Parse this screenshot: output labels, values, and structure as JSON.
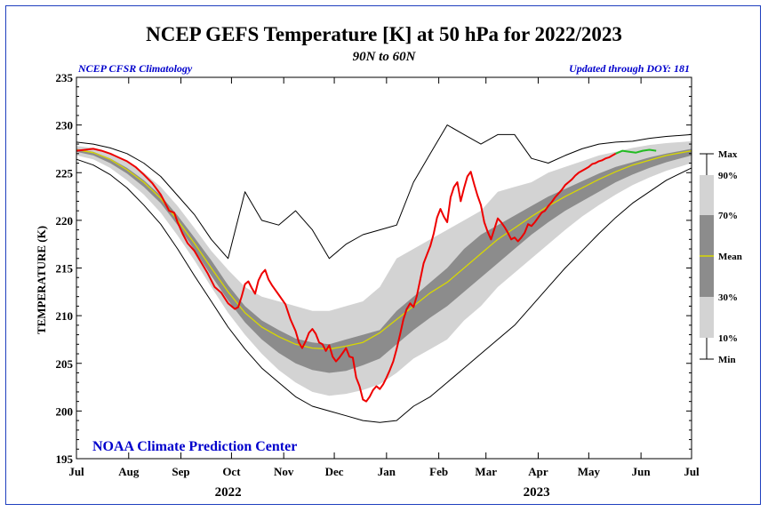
{
  "chart_data": {
    "type": "area",
    "title": "NCEP GEFS Temperature [K] at 50 hPa for 2022/2023",
    "subtitle": "90N to 60N",
    "left_note": "NCEP CFSR Climatology",
    "right_note": "Updated through DOY: 181",
    "ylabel": "TEMPERATURE (K)",
    "credit": "NOAA Climate Prediction Center",
    "ylim": [
      195,
      235
    ],
    "yticks": [
      195,
      200,
      205,
      210,
      215,
      220,
      225,
      230,
      235
    ],
    "xlim": [
      0,
      365
    ],
    "month_ticks": [
      {
        "label": "Jul",
        "day": 0
      },
      {
        "label": "Aug",
        "day": 31
      },
      {
        "label": "Sep",
        "day": 62
      },
      {
        "label": "Oct",
        "day": 92
      },
      {
        "label": "Nov",
        "day": 123
      },
      {
        "label": "Dec",
        "day": 153
      },
      {
        "label": "Jan",
        "day": 184
      },
      {
        "label": "Feb",
        "day": 215
      },
      {
        "label": "Mar",
        "day": 243
      },
      {
        "label": "Apr",
        "day": 274
      },
      {
        "label": "May",
        "day": 304
      },
      {
        "label": "Jun",
        "day": 335
      },
      {
        "label": "Jul",
        "day": 365
      }
    ],
    "year_labels": [
      {
        "label": "2022",
        "day": 90
      },
      {
        "label": "2023",
        "day": 273
      }
    ],
    "legend": {
      "items": [
        {
          "label": "Max",
          "value": "max"
        },
        {
          "label": "90%",
          "value": "p90"
        },
        {
          "label": "70%",
          "value": "p70"
        },
        {
          "label": "Mean",
          "value": "mean"
        },
        {
          "label": "30%",
          "value": "p30"
        },
        {
          "label": "10%",
          "value": "p10"
        },
        {
          "label": "Min",
          "value": "min"
        }
      ]
    },
    "colors": {
      "outer_band": "#d3d3d3",
      "inner_band": "#8c8c8c",
      "mean": "#d8d800",
      "extremes": "#000000",
      "observed": "#ee0000",
      "forecast": "#22bb22",
      "axes": "#000000",
      "text_blue": "#0000cc"
    },
    "series": {
      "days": [
        0,
        10,
        20,
        30,
        40,
        50,
        60,
        70,
        80,
        90,
        100,
        110,
        120,
        130,
        140,
        150,
        160,
        170,
        180,
        190,
        200,
        210,
        220,
        230,
        240,
        250,
        260,
        270,
        280,
        290,
        300,
        310,
        320,
        330,
        340,
        350,
        365
      ],
      "max": [
        228.2,
        228.0,
        227.6,
        227.0,
        226.0,
        224.6,
        222.6,
        220.6,
        218.0,
        216.0,
        223.0,
        220.0,
        219.5,
        221.0,
        219.0,
        216.0,
        217.5,
        218.5,
        219.0,
        219.5,
        224.0,
        227.0,
        230.0,
        229.0,
        228.0,
        229.0,
        229.0,
        226.5,
        226.0,
        226.8,
        227.5,
        228.0,
        228.2,
        228.3,
        228.6,
        228.8,
        229.0
      ],
      "p90": [
        227.8,
        227.6,
        227.0,
        226.2,
        225.0,
        223.5,
        221.5,
        219.2,
        216.8,
        214.8,
        213.0,
        212.0,
        211.5,
        211.0,
        210.5,
        210.5,
        211.0,
        211.5,
        213.0,
        216.0,
        217.0,
        218.0,
        219.0,
        220.0,
        221.0,
        223.0,
        223.5,
        224.0,
        225.0,
        225.6,
        226.2,
        226.8,
        227.2,
        227.6,
        227.9,
        228.1,
        228.3
      ],
      "p70": [
        227.5,
        227.2,
        226.5,
        225.5,
        224.2,
        222.6,
        220.5,
        218.2,
        215.8,
        213.2,
        211.0,
        209.5,
        208.5,
        207.6,
        207.2,
        207.0,
        207.5,
        208.0,
        208.5,
        210.5,
        212.0,
        213.5,
        215.0,
        217.0,
        218.5,
        219.5,
        220.5,
        221.5,
        222.5,
        223.3,
        224.1,
        224.9,
        225.6,
        226.1,
        226.6,
        227.0,
        227.5
      ],
      "mean": [
        227.4,
        227.1,
        226.4,
        225.3,
        224.0,
        222.3,
        220.0,
        217.6,
        215.0,
        212.5,
        210.3,
        208.8,
        207.8,
        207.0,
        206.6,
        206.5,
        206.8,
        207.2,
        208.2,
        209.6,
        211.0,
        212.4,
        213.5,
        215.0,
        216.5,
        218.0,
        219.2,
        220.4,
        221.5,
        222.5,
        223.4,
        224.3,
        225.1,
        225.8,
        226.3,
        226.8,
        227.3
      ],
      "p30": [
        227.2,
        226.8,
        226.0,
        224.9,
        223.5,
        221.8,
        219.5,
        216.9,
        214.2,
        211.6,
        209.3,
        207.5,
        206.1,
        205.0,
        204.3,
        204.0,
        204.2,
        204.8,
        205.5,
        207.0,
        208.5,
        209.8,
        211.0,
        212.5,
        214.0,
        215.5,
        217.0,
        218.5,
        219.8,
        221.0,
        222.0,
        223.0,
        224.0,
        224.8,
        225.5,
        226.1,
        226.8
      ],
      "p10": [
        226.8,
        226.4,
        225.5,
        224.2,
        222.7,
        220.8,
        218.4,
        215.8,
        213.0,
        210.3,
        208.0,
        206.0,
        204.3,
        203.0,
        202.0,
        201.6,
        201.8,
        202.2,
        202.8,
        204.0,
        205.5,
        206.5,
        207.5,
        209.5,
        211.0,
        213.0,
        214.5,
        216.0,
        217.5,
        219.0,
        220.4,
        221.6,
        222.7,
        223.7,
        224.5,
        225.2,
        226.0
      ],
      "min": [
        226.4,
        225.8,
        224.8,
        223.4,
        221.6,
        219.6,
        217.0,
        214.2,
        211.5,
        208.8,
        206.5,
        204.5,
        203.0,
        201.5,
        200.5,
        200.0,
        199.5,
        199.0,
        198.8,
        199.0,
        200.5,
        201.5,
        203.0,
        204.5,
        206.0,
        207.5,
        209.0,
        211.0,
        213.0,
        215.0,
        216.8,
        218.6,
        220.3,
        221.8,
        223.0,
        224.2,
        225.5
      ],
      "observed": [
        [
          0,
          227.3
        ],
        [
          5,
          227.4
        ],
        [
          10,
          227.5
        ],
        [
          15,
          227.3
        ],
        [
          20,
          227.0
        ],
        [
          25,
          226.6
        ],
        [
          30,
          226.2
        ],
        [
          35,
          225.6
        ],
        [
          40,
          224.8
        ],
        [
          45,
          223.9
        ],
        [
          50,
          222.7
        ],
        [
          55,
          221.0
        ],
        [
          58,
          220.8
        ],
        [
          60,
          219.8
        ],
        [
          63,
          218.6
        ],
        [
          66,
          217.6
        ],
        [
          70,
          216.8
        ],
        [
          74,
          215.6
        ],
        [
          78,
          214.4
        ],
        [
          82,
          213.0
        ],
        [
          86,
          212.4
        ],
        [
          90,
          211.3
        ],
        [
          94,
          210.7
        ],
        [
          96,
          210.9
        ],
        [
          98,
          212.0
        ],
        [
          100,
          213.3
        ],
        [
          102,
          213.6
        ],
        [
          104,
          212.9
        ],
        [
          106,
          212.3
        ],
        [
          108,
          213.7
        ],
        [
          110,
          214.4
        ],
        [
          112,
          214.8
        ],
        [
          114,
          213.8
        ],
        [
          116,
          213.2
        ],
        [
          120,
          212.2
        ],
        [
          124,
          211.2
        ],
        [
          127,
          209.6
        ],
        [
          130,
          208.4
        ],
        [
          132,
          207.2
        ],
        [
          134,
          206.6
        ],
        [
          136,
          207.3
        ],
        [
          138,
          208.2
        ],
        [
          140,
          208.6
        ],
        [
          142,
          208.1
        ],
        [
          144,
          207.2
        ],
        [
          146,
          207.0
        ],
        [
          148,
          206.3
        ],
        [
          150,
          206.9
        ],
        [
          152,
          205.7
        ],
        [
          154,
          205.2
        ],
        [
          156,
          205.6
        ],
        [
          158,
          206.1
        ],
        [
          160,
          206.6
        ],
        [
          162,
          205.7
        ],
        [
          164,
          205.6
        ],
        [
          166,
          203.5
        ],
        [
          168,
          202.6
        ],
        [
          170,
          201.2
        ],
        [
          172,
          201.0
        ],
        [
          174,
          201.5
        ],
        [
          176,
          202.2
        ],
        [
          178,
          202.6
        ],
        [
          180,
          202.3
        ],
        [
          182,
          202.8
        ],
        [
          184,
          203.5
        ],
        [
          186,
          204.3
        ],
        [
          188,
          205.2
        ],
        [
          190,
          206.5
        ],
        [
          192,
          208.0
        ],
        [
          194,
          209.6
        ],
        [
          196,
          210.7
        ],
        [
          198,
          211.3
        ],
        [
          200,
          210.9
        ],
        [
          202,
          212.1
        ],
        [
          204,
          213.8
        ],
        [
          206,
          215.5
        ],
        [
          208,
          216.4
        ],
        [
          210,
          217.3
        ],
        [
          212,
          218.6
        ],
        [
          214,
          220.3
        ],
        [
          216,
          221.2
        ],
        [
          218,
          220.4
        ],
        [
          220,
          219.8
        ],
        [
          222,
          222.4
        ],
        [
          224,
          223.5
        ],
        [
          226,
          224.0
        ],
        [
          228,
          222.0
        ],
        [
          230,
          223.4
        ],
        [
          232,
          224.6
        ],
        [
          234,
          225.1
        ],
        [
          236,
          223.8
        ],
        [
          238,
          222.6
        ],
        [
          240,
          221.6
        ],
        [
          242,
          219.8
        ],
        [
          244,
          218.8
        ],
        [
          246,
          218.0
        ],
        [
          248,
          219.1
        ],
        [
          250,
          220.2
        ],
        [
          252,
          219.8
        ],
        [
          254,
          219.3
        ],
        [
          256,
          218.7
        ],
        [
          258,
          218.0
        ],
        [
          260,
          218.2
        ],
        [
          262,
          217.8
        ],
        [
          264,
          218.2
        ],
        [
          266,
          218.7
        ],
        [
          268,
          219.6
        ],
        [
          270,
          219.4
        ],
        [
          272,
          219.8
        ],
        [
          274,
          220.3
        ],
        [
          276,
          220.8
        ],
        [
          278,
          221.0
        ],
        [
          280,
          221.5
        ],
        [
          282,
          221.9
        ],
        [
          284,
          222.4
        ],
        [
          286,
          222.8
        ],
        [
          288,
          223.2
        ],
        [
          290,
          223.7
        ],
        [
          292,
          224.0
        ],
        [
          294,
          224.3
        ],
        [
          296,
          224.7
        ],
        [
          298,
          225.0
        ],
        [
          300,
          225.2
        ],
        [
          302,
          225.4
        ],
        [
          304,
          225.6
        ],
        [
          306,
          225.9
        ],
        [
          308,
          226.0
        ],
        [
          310,
          226.2
        ],
        [
          312,
          226.3
        ],
        [
          314,
          226.5
        ],
        [
          316,
          226.6
        ],
        [
          318,
          226.8
        ],
        [
          320,
          227.0
        ]
      ],
      "forecast": [
        [
          320,
          227.0
        ],
        [
          324,
          227.3
        ],
        [
          328,
          227.2
        ],
        [
          332,
          227.1
        ],
        [
          336,
          227.3
        ],
        [
          340,
          227.4
        ],
        [
          344,
          227.3
        ]
      ]
    }
  }
}
